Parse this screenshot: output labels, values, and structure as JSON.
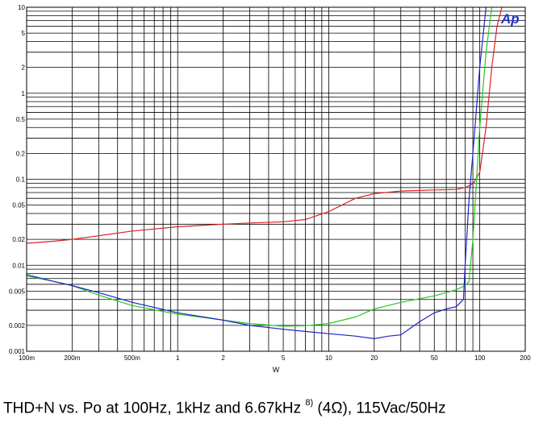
{
  "chart_data": {
    "type": "line",
    "title": "",
    "xlabel": "W",
    "ylabel": "",
    "x_scale": "log",
    "y_scale": "log",
    "xlim": [
      0.1,
      200
    ],
    "ylim": [
      0.001,
      10
    ],
    "grid": true,
    "x_ticks": [
      {
        "value": 0.1,
        "label": "100m"
      },
      {
        "value": 0.2,
        "label": "200m"
      },
      {
        "value": 0.5,
        "label": "500m"
      },
      {
        "value": 1,
        "label": "1"
      },
      {
        "value": 2,
        "label": "2"
      },
      {
        "value": 5,
        "label": "5"
      },
      {
        "value": 10,
        "label": "10"
      },
      {
        "value": 20,
        "label": "20"
      },
      {
        "value": 50,
        "label": "50"
      },
      {
        "value": 100,
        "label": "100"
      },
      {
        "value": 200,
        "label": "200"
      }
    ],
    "y_ticks": [
      {
        "value": 10,
        "label": "10"
      },
      {
        "value": 5,
        "label": "5"
      },
      {
        "value": 2,
        "label": "2"
      },
      {
        "value": 1,
        "label": "1"
      },
      {
        "value": 0.5,
        "label": "0.5"
      },
      {
        "value": 0.2,
        "label": "0.2"
      },
      {
        "value": 0.1,
        "label": "0.1"
      },
      {
        "value": 0.05,
        "label": "0.05"
      },
      {
        "value": 0.02,
        "label": "0.02"
      },
      {
        "value": 0.01,
        "label": "0.01"
      },
      {
        "value": 0.005,
        "label": "0.005"
      },
      {
        "value": 0.002,
        "label": "0.002"
      },
      {
        "value": 0.001,
        "label": "0.001"
      }
    ],
    "series": [
      {
        "color": "#dd2222",
        "x": [
          0.1,
          0.15,
          0.2,
          0.3,
          0.5,
          1,
          2,
          3,
          5,
          7,
          10,
          15,
          20,
          30,
          50,
          70,
          80,
          90,
          100,
          110,
          120,
          130,
          140
        ],
        "y": [
          0.018,
          0.019,
          0.02,
          0.022,
          0.025,
          0.028,
          0.03,
          0.031,
          0.032,
          0.034,
          0.042,
          0.06,
          0.068,
          0.073,
          0.075,
          0.076,
          0.08,
          0.088,
          0.12,
          0.4,
          2,
          6,
          12
        ]
      },
      {
        "color": "#22cc22",
        "x": [
          0.1,
          0.15,
          0.2,
          0.3,
          0.5,
          1,
          2,
          3,
          5,
          7,
          10,
          15,
          20,
          30,
          50,
          70,
          80,
          85,
          90,
          100,
          110,
          120
        ],
        "y": [
          0.0075,
          0.0065,
          0.0058,
          0.0045,
          0.0034,
          0.0027,
          0.0023,
          0.0021,
          0.00195,
          0.00198,
          0.0021,
          0.0025,
          0.0031,
          0.0037,
          0.0044,
          0.0052,
          0.0058,
          0.0065,
          0.02,
          0.4,
          3,
          12
        ]
      },
      {
        "color": "#2222cc",
        "x": [
          0.1,
          0.15,
          0.2,
          0.3,
          0.5,
          1,
          2,
          3,
          5,
          7,
          10,
          15,
          20,
          25,
          30,
          40,
          50,
          60,
          70,
          78,
          80,
          85,
          90,
          100,
          110
        ],
        "y": [
          0.0078,
          0.0065,
          0.0058,
          0.0048,
          0.0037,
          0.0028,
          0.0023,
          0.002,
          0.0018,
          0.0017,
          0.0016,
          0.0015,
          0.0014,
          0.0015,
          0.00155,
          0.0022,
          0.0028,
          0.0031,
          0.0033,
          0.004,
          0.01,
          0.06,
          0.2,
          2,
          12
        ]
      }
    ]
  },
  "logo": {
    "text": "Ap",
    "color": "#2233cc"
  },
  "caption": {
    "main": "THD+N vs. Po at 100Hz, 1kHz and 6.67kHz ",
    "footnote": "8)",
    "rest": " (4Ω), 115Vac/50Hz"
  }
}
